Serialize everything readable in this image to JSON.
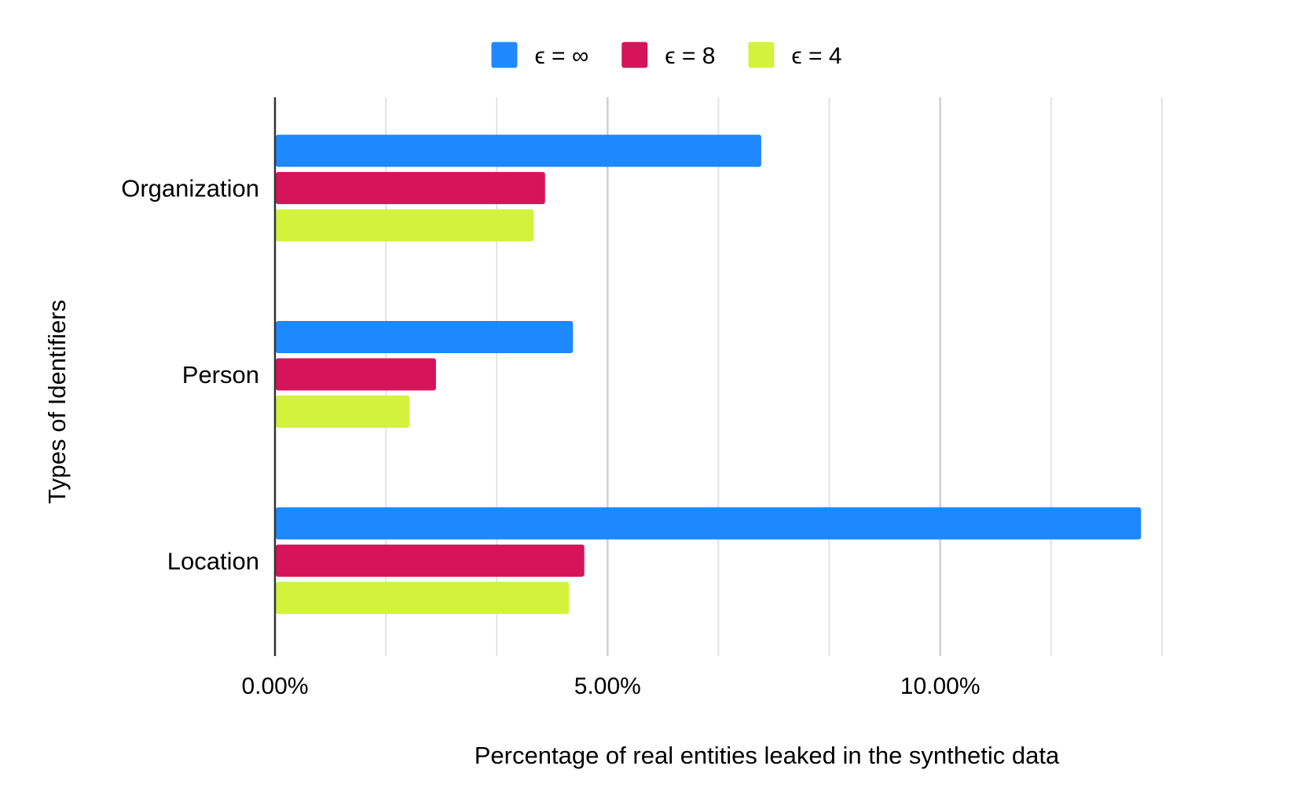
{
  "chart_data": {
    "type": "bar",
    "orientation": "horizontal",
    "categories": [
      "Organization",
      "Person",
      "Location"
    ],
    "series": [
      {
        "name": "ϵ = ∞",
        "color": "#1e88ff",
        "values": [
          7.31,
          4.48,
          13.02
        ]
      },
      {
        "name": "ϵ = 8",
        "color": "#d5145a",
        "values": [
          4.06,
          2.42,
          4.65
        ]
      },
      {
        "name": "ϵ = 4",
        "color": "#d2f23c",
        "values": [
          3.89,
          2.02,
          4.42
        ]
      }
    ],
    "title": "",
    "xlabel": "Percentage of real entities leaked in the synthetic data",
    "ylabel": "Types of Identifiers",
    "xlim": [
      0,
      15
    ],
    "xticks": [
      0,
      5,
      10
    ],
    "xtick_labels": [
      "0.00%",
      "5.00%",
      "10.00%"
    ],
    "minor_gridlines_every": 1.6667,
    "grid": true,
    "legend_position": "top-center"
  }
}
